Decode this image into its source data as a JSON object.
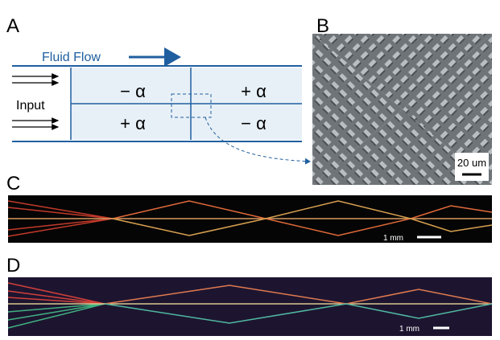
{
  "panels": [
    {
      "label": "A",
      "flow_label": "Fluid Flow",
      "input_label": "Input",
      "cells": [
        "− α",
        "+ α",
        "+ α",
        "− α"
      ]
    },
    {
      "label": "B",
      "scale_bar": "20 um"
    },
    {
      "label": "C",
      "scale_bar": "1 mm"
    },
    {
      "label": "D",
      "scale_bar": "1 mm"
    }
  ]
}
